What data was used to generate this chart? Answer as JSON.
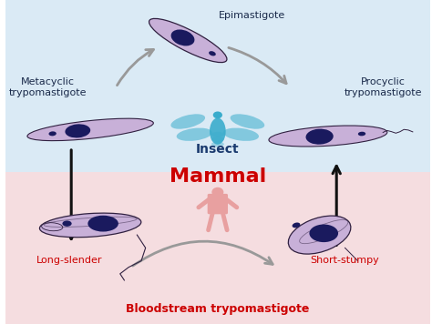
{
  "bg_top_color": "#daeaf5",
  "bg_bottom_color": "#f5dde0",
  "insect_color": "#3aaccc",
  "insect_label": "Insect",
  "insect_label_color": "#1a3a6e",
  "mammal_label": "Mammal",
  "mammal_label_color": "#cc0000",
  "mammal_figure_color": "#e8a0a0",
  "bloodstream_label": "Bloodstream trypomastigote",
  "bloodstream_label_color": "#cc0000",
  "parasite_fill": "#c8b0d8",
  "parasite_edge": "#302040",
  "nucleus_fill": "#1a1a5e",
  "label_dark": "#1a2a4a",
  "label_red": "#cc0000",
  "arrow_gray": "#999999",
  "arrow_black": "#111111",
  "figsize": [
    4.74,
    3.56
  ],
  "dpi": 100
}
